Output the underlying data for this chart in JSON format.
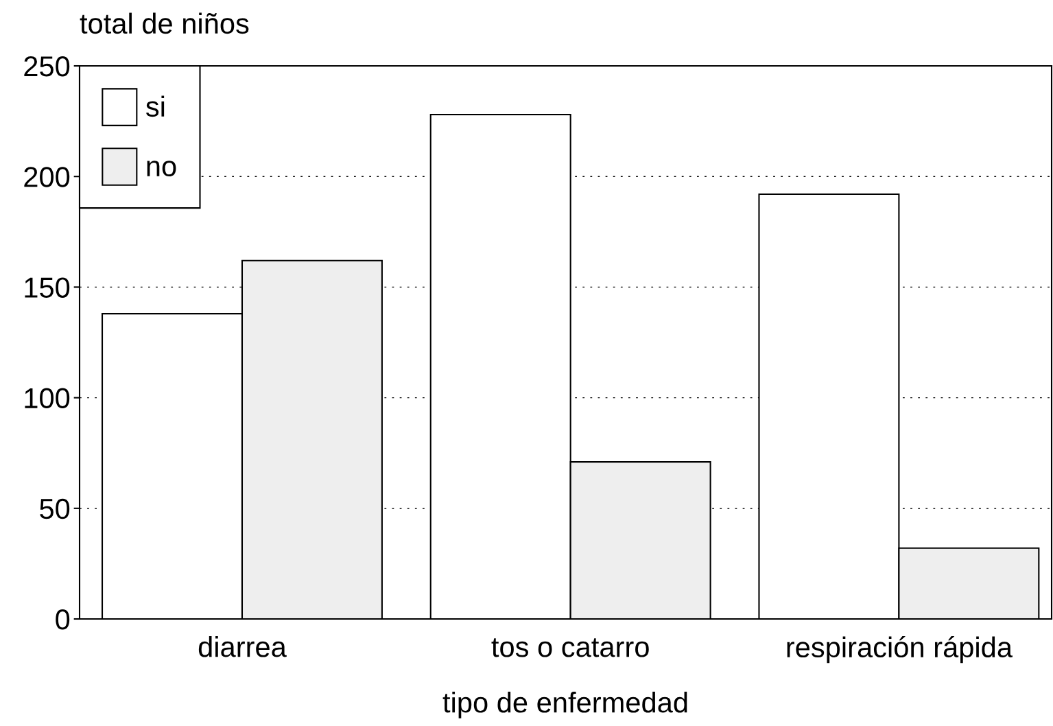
{
  "chart_data": {
    "type": "bar",
    "ylabel": "total de niños",
    "xlabel": "tipo de enfermedad",
    "categories": [
      "diarrea",
      "tos o catarro",
      "respiración rápida"
    ],
    "series": [
      {
        "name": "si",
        "color": "#ffffff",
        "values": [
          138,
          228,
          192
        ]
      },
      {
        "name": "no",
        "color": "#eeeeee",
        "values": [
          162,
          71,
          32
        ]
      }
    ],
    "ylim": [
      0,
      250
    ],
    "yticks": [
      0,
      50,
      100,
      150,
      200,
      250
    ],
    "grid": "y",
    "legend": "top left"
  }
}
